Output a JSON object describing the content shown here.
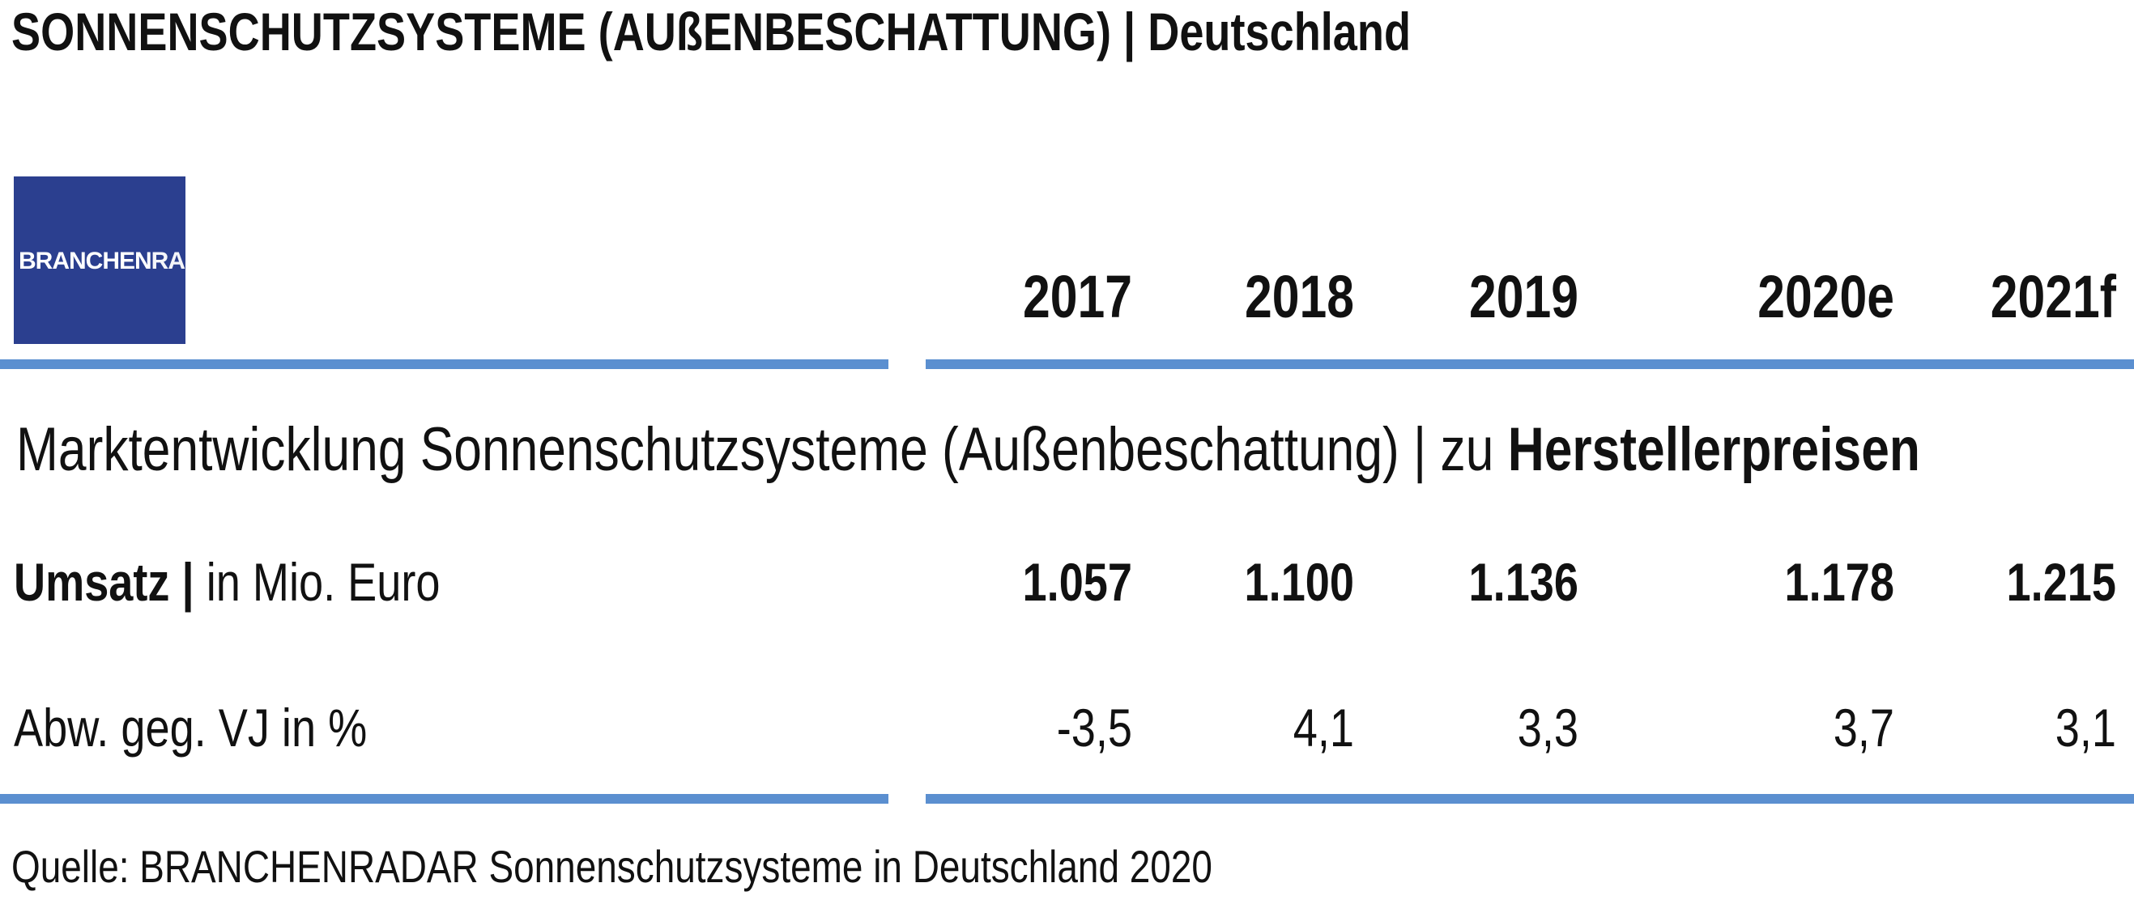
{
  "header": {
    "title": "SONNENSCHUTZSYSTEME (AUßENBESCHATTUNG) | Deutschland"
  },
  "logo": {
    "part1": "BRANCHEN",
    "part2": "RADAR"
  },
  "table": {
    "columns": [
      "2017",
      "2018",
      "2019",
      "2020e",
      "2021f"
    ],
    "subtitle": {
      "normal": "Marktentwicklung Sonnenschutzsysteme (Außenbeschattung) | zu ",
      "bold": "Herstellerpreisen"
    },
    "rows": [
      {
        "label_bold": "Umsatz |",
        "label": " in Mio. Euro",
        "values": [
          "1.057",
          "1.100",
          "1.136",
          "1.178",
          "1.215"
        ]
      },
      {
        "label": "Abw. geg. VJ in %",
        "values": [
          "-3,5",
          "4,1",
          "3,3",
          "3,7",
          "3,1"
        ]
      }
    ]
  },
  "footer": {
    "source": "Quelle: BRANCHENRADAR Sonnenschutzsysteme in Deutschland 2020"
  }
}
